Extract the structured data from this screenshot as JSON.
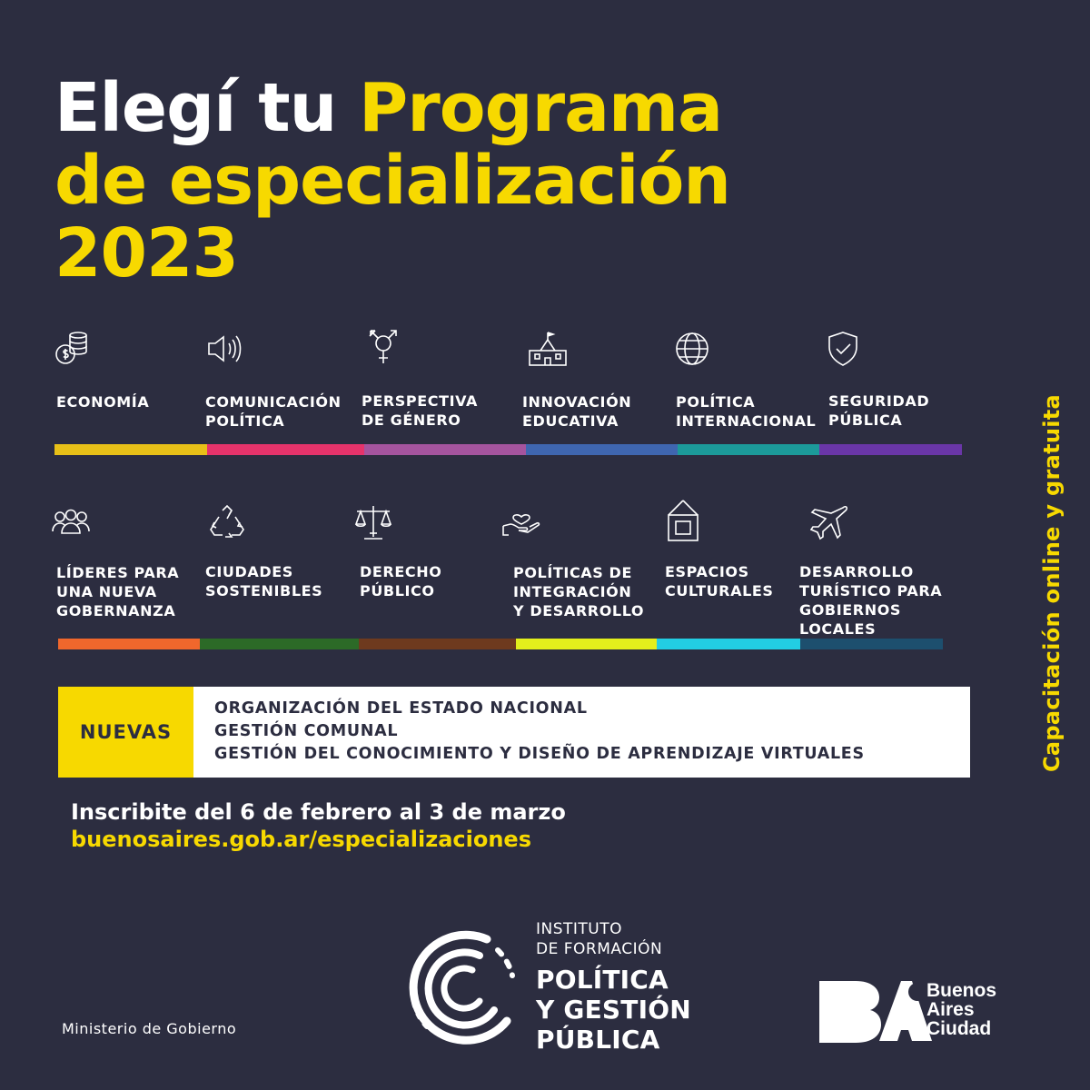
{
  "title": {
    "line1_white": "Elegí tu",
    "line1_yellow": "Programa",
    "line2": "de especialización",
    "line3": "2023"
  },
  "side_text": "Capacitación online y gratuita",
  "programs_row1": [
    {
      "icon": "coins-icon",
      "lines": [
        "ECONOMÍA"
      ],
      "color": "#e8c018"
    },
    {
      "icon": "speaker-icon",
      "lines": [
        "COMUNICACIÓN",
        "POLÍTICA"
      ],
      "color": "#e6336b"
    },
    {
      "icon": "gender-symbol-icon",
      "lines": [
        "PERSPECTIVA",
        "DE GÉNERO"
      ],
      "color": "#a5549e"
    },
    {
      "icon": "school-building-icon",
      "lines": [
        "INNOVACIÓN",
        "EDUCATIVA"
      ],
      "color": "#3f66b0"
    },
    {
      "icon": "globe-icon",
      "lines": [
        "POLÍTICA",
        "INTERNACIONAL"
      ],
      "color": "#1c9a9a"
    },
    {
      "icon": "shield-check-icon",
      "lines": [
        "SEGURIDAD",
        "PÚBLICA"
      ],
      "color": "#6a36a8"
    }
  ],
  "programs_row2": [
    {
      "icon": "people-group-icon",
      "lines": [
        "LÍDERES PARA",
        "UNA NUEVA",
        "GOBERNANZA"
      ],
      "color": "#f0672c"
    },
    {
      "icon": "recycle-icon",
      "lines": [
        "CIUDADES",
        "SOSTENIBLES"
      ],
      "color": "#2c6a27"
    },
    {
      "icon": "scales-icon",
      "lines": [
        "DERECHO",
        "PÚBLICO"
      ],
      "color": "#6e3a1e"
    },
    {
      "icon": "hand-heart-icon",
      "lines": [
        "POLÍTICAS DE",
        "INTEGRACIÓN",
        "Y DESARROLLO"
      ],
      "color": "#e3ef1c"
    },
    {
      "icon": "framed-picture-icon",
      "lines": [
        "ESPACIOS",
        "CULTURALES"
      ],
      "color": "#22cde3"
    },
    {
      "icon": "airplane-icon",
      "lines": [
        "DESARROLLO",
        "TURÍSTICO PARA",
        "GOBIERNOS",
        "LOCALES"
      ],
      "color": "#1d4f6e"
    }
  ],
  "nuevas": {
    "tag": "NUEVAS",
    "items": [
      "ORGANIZACIÓN DEL ESTADO NACIONAL",
      "GESTIÓN COMUNAL",
      "GESTIÓN DEL CONOCIMIENTO Y DISEÑO DE APRENDIZAJE VIRTUALES"
    ]
  },
  "cta": {
    "dates": "Inscribite del 6 de febrero al 3 de marzo",
    "url": "buenosaires.gob.ar/especializaciones"
  },
  "footer": {
    "ministry": "Ministerio de Gobierno",
    "institute_line1": "INSTITUTO",
    "institute_line2": "DE FORMACIÓN",
    "institute_line3": "POLÍTICA",
    "institute_line4": "Y GESTIÓN",
    "institute_line5": "PÚBLICA",
    "ba_line1": "Buenos",
    "ba_line2": "Aires",
    "ba_line3": "Ciudad"
  },
  "colors": {
    "background": "#2c2d40",
    "accent_yellow": "#f7d900",
    "text_white": "#ffffff"
  }
}
